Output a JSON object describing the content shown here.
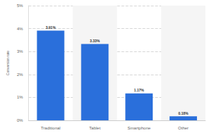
{
  "chart_data": {
    "type": "bar",
    "y_label": "Conversion rate",
    "categories": [
      "Traditional",
      "Tablet",
      "Smartphone",
      "Other"
    ],
    "values": [
      3.91,
      3.33,
      1.17,
      0.18
    ],
    "value_labels": [
      "3.91%",
      "3.33%",
      "1.17%",
      "0.18%"
    ],
    "color": "#2a6fdb",
    "ylim": [
      0,
      5
    ],
    "yticks": [
      {
        "value": 0,
        "label": "0%"
      },
      {
        "value": 1,
        "label": "1%"
      },
      {
        "value": 2,
        "label": "2%"
      },
      {
        "value": 3,
        "label": "3%"
      },
      {
        "value": 4,
        "label": "4%"
      },
      {
        "value": 5,
        "label": "5%"
      }
    ],
    "grid": true,
    "data_labels": true
  }
}
